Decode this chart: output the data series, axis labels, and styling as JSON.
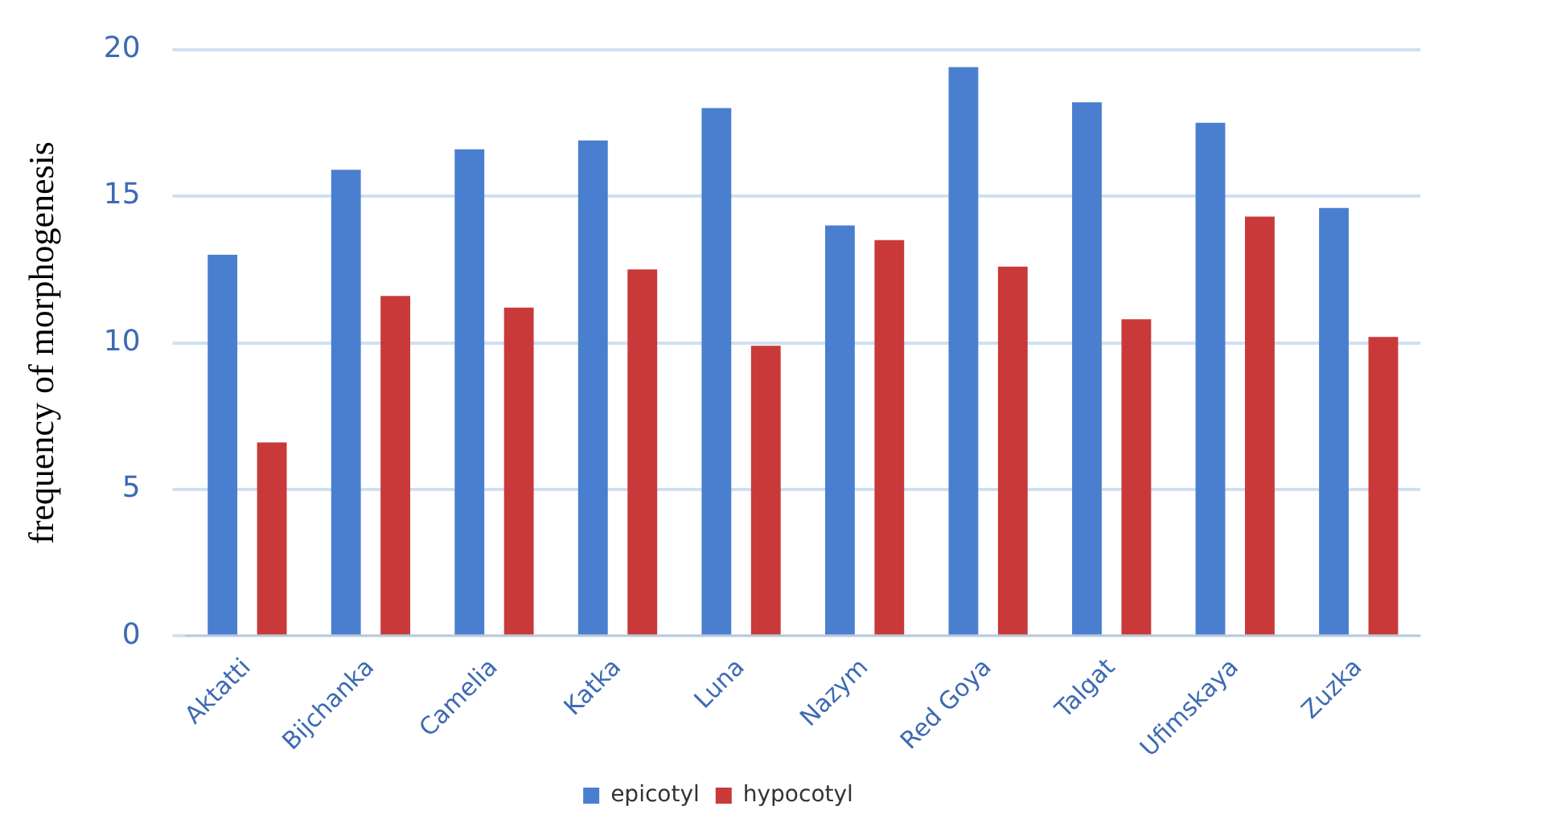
{
  "chart_data": {
    "type": "bar",
    "ylabel": "frequency of morphogenesis",
    "categories": [
      "Aktatti",
      "Bijchanka",
      "Camelia",
      "Katka",
      "Luna",
      "Nazym",
      "Red Goya",
      "Talgat",
      "Ufimskaya",
      "Zuzka"
    ],
    "series": [
      {
        "name": "epicotyl",
        "color": "#4a7fcf",
        "values": [
          13.0,
          15.9,
          16.6,
          16.9,
          18.0,
          14.0,
          19.4,
          18.2,
          17.5,
          14.6
        ]
      },
      {
        "name": "hypocotyl",
        "color": "#c9393a",
        "values": [
          6.6,
          11.6,
          11.2,
          12.5,
          9.9,
          13.5,
          12.6,
          10.8,
          14.3,
          10.2
        ]
      }
    ],
    "ylim": [
      0,
      20
    ],
    "yticks": [
      0,
      5,
      10,
      15,
      20
    ],
    "grid": "y",
    "legend": "bottom"
  }
}
